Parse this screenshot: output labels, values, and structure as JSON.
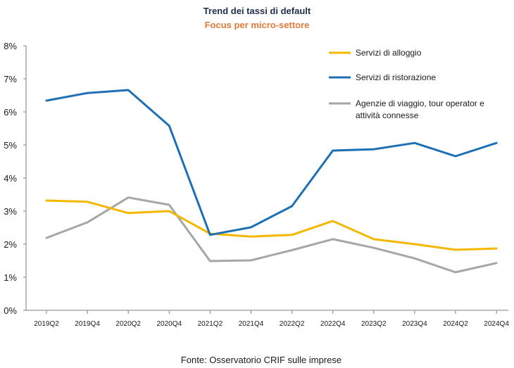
{
  "chart_data": {
    "type": "line",
    "title": "Trend dei tassi di default",
    "subtitle": "Focus per micro-settore",
    "x": [
      "2019Q2",
      "2019Q4",
      "2020Q2",
      "2020Q4",
      "2021Q2",
      "2021Q4",
      "2022Q2",
      "2022Q4",
      "2023Q2",
      "2023Q4",
      "2024Q2",
      "2024Q4"
    ],
    "yticks": [
      "0%",
      "1%",
      "2%",
      "3%",
      "4%",
      "5%",
      "6%",
      "7%",
      "8%"
    ],
    "ylim": [
      0,
      8
    ],
    "series": [
      {
        "name": "Servizi di alloggio",
        "color": "#f5b800",
        "values": [
          3.32,
          3.28,
          2.94,
          3.0,
          2.32,
          2.23,
          2.28,
          2.7,
          2.15,
          2.0,
          1.83,
          1.87
        ]
      },
      {
        "name": "Servizi di ristorazione",
        "color": "#1f6fb5",
        "values": [
          6.34,
          6.57,
          6.66,
          5.58,
          2.28,
          2.51,
          3.15,
          4.83,
          4.87,
          5.06,
          4.66,
          5.06
        ]
      },
      {
        "name": "Agenzie di viaggio, tour operator e attività connesse",
        "color": "#a6a6a6",
        "legend_lines": [
          "Agenzie di viaggio, tour operator e",
          "attività connesse"
        ],
        "values": [
          2.19,
          2.66,
          3.41,
          3.19,
          1.49,
          1.51,
          1.82,
          2.15,
          1.89,
          1.57,
          1.15,
          1.43
        ]
      }
    ],
    "legend_position": "top-right",
    "grid": false
  },
  "source": "Fonte: Osservatorio CRIF sulle imprese"
}
